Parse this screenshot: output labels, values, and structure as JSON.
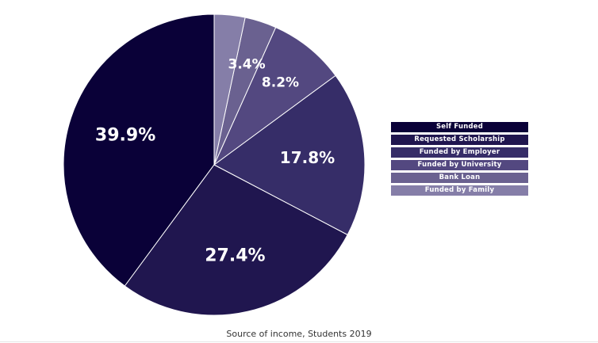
{
  "chart_data": {
    "type": "pie",
    "title": "",
    "caption": "Source of income, Students 2019",
    "legend_position": "right",
    "slices": [
      {
        "label": "Self Funded",
        "value": 39.9,
        "display": "39.9%",
        "color": "#0a0138"
      },
      {
        "label": "Requested Scholarship",
        "value": 27.4,
        "display": "27.4%",
        "color": "#20164f"
      },
      {
        "label": "Funded by Employer",
        "value": 17.8,
        "display": "17.8%",
        "color": "#362d68"
      },
      {
        "label": "Funded by University",
        "value": 8.2,
        "display": "8.2%",
        "color": "#534880"
      },
      {
        "label": "Bank Loan",
        "value": 3.4,
        "display": "3.4%",
        "color": "#6a6190"
      },
      {
        "label": "Funded by Family",
        "value": 3.3,
        "display": "",
        "color": "#857ea8"
      }
    ]
  }
}
